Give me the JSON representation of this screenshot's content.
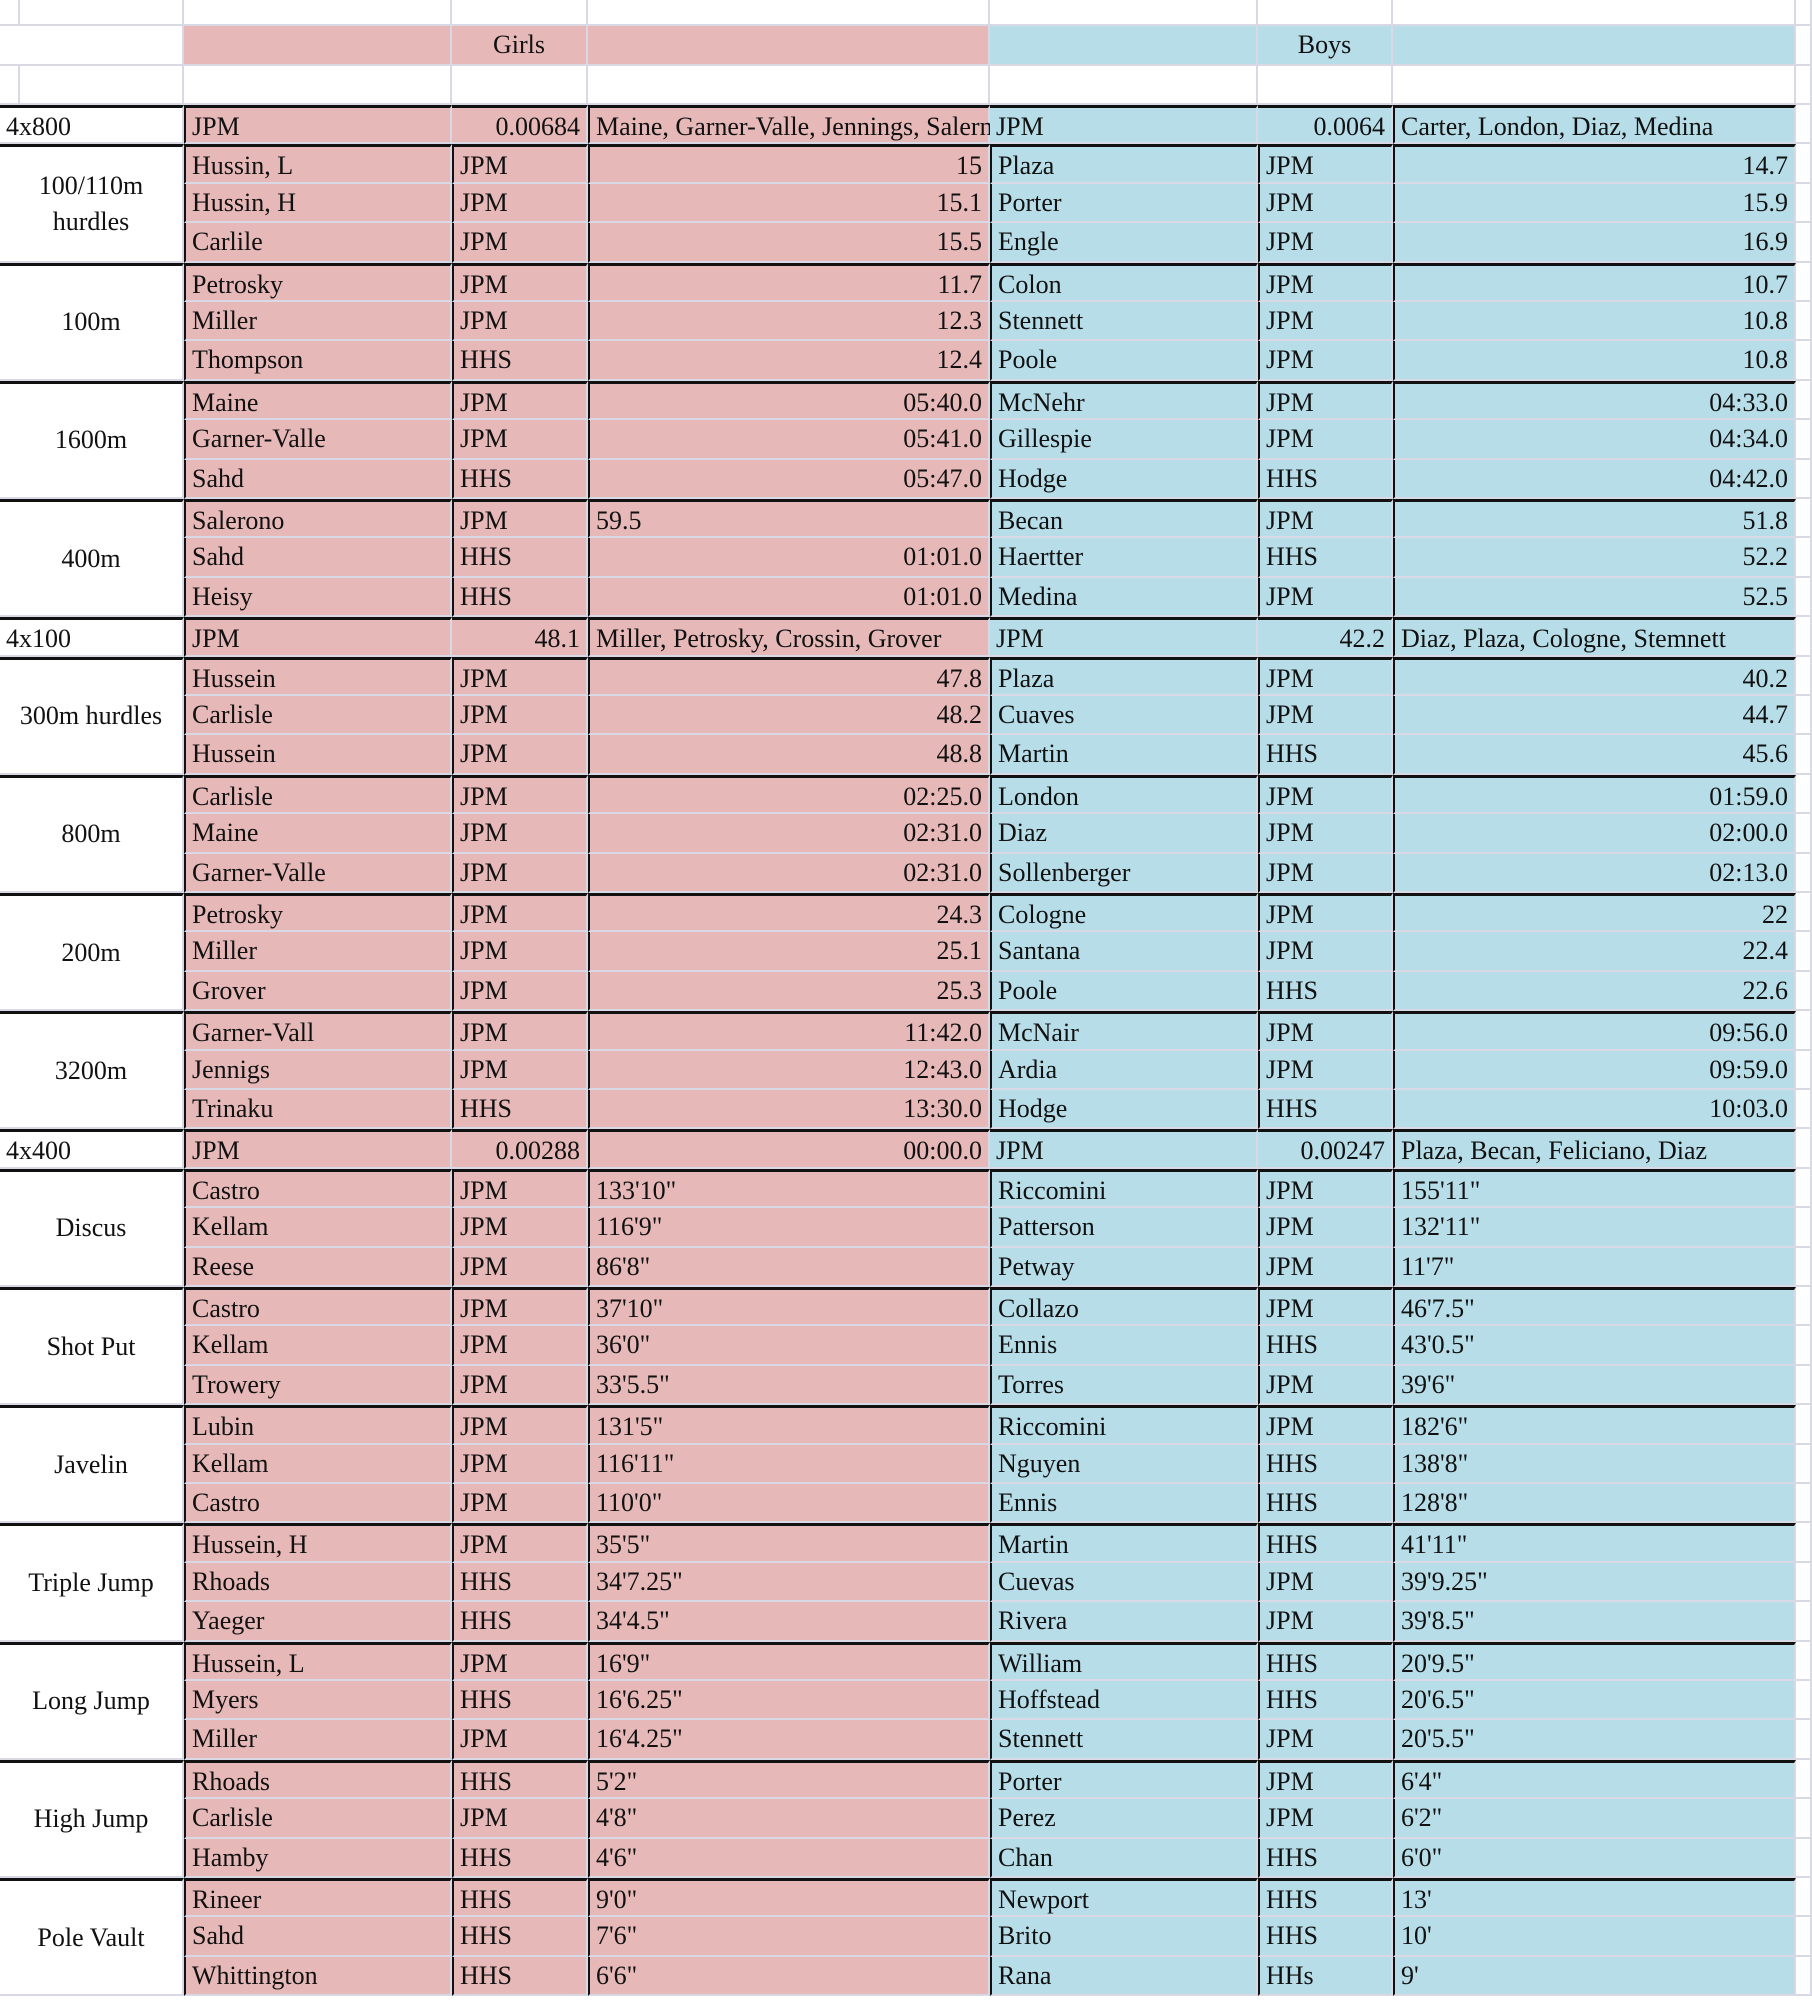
{
  "header": {
    "girls": "Girls",
    "boys": "Boys"
  },
  "colors": {
    "girls_bg": "#e6b8b8",
    "boys_bg": "#b7dde8"
  },
  "events": [
    {
      "name": "4x800",
      "relay": true,
      "girls": {
        "team": "JPM",
        "time": "0.00684",
        "members": "Maine, Garner-Valle, Jennings, Salerno"
      },
      "boys": {
        "team": "JPM",
        "time": "0.0064",
        "members": "Carter, London, Diaz, Medina"
      }
    },
    {
      "name": "100/110m hurdles",
      "rows": [
        {
          "g": [
            "Hussin, L",
            "JPM",
            "15"
          ],
          "b": [
            "Plaza",
            "JPM",
            "14.7"
          ]
        },
        {
          "g": [
            "Hussin, H",
            "JPM",
            "15.1"
          ],
          "b": [
            "Porter",
            "JPM",
            "15.9"
          ]
        },
        {
          "g": [
            "Carlile",
            "JPM",
            "15.5"
          ],
          "b": [
            "Engle",
            "JPM",
            "16.9"
          ]
        }
      ]
    },
    {
      "name": "100m",
      "rows": [
        {
          "g": [
            "Petrosky",
            "JPM",
            "11.7"
          ],
          "b": [
            "Colon",
            "JPM",
            "10.7"
          ]
        },
        {
          "g": [
            "Miller",
            "JPM",
            "12.3"
          ],
          "b": [
            "Stennett",
            "JPM",
            "10.8"
          ]
        },
        {
          "g": [
            "Thompson",
            "HHS",
            "12.4"
          ],
          "b": [
            "Poole",
            "JPM",
            "10.8"
          ]
        }
      ]
    },
    {
      "name": "1600m",
      "rows": [
        {
          "g": [
            "Maine",
            "JPM",
            "05:40.0"
          ],
          "b": [
            "McNehr",
            "JPM",
            "04:33.0"
          ]
        },
        {
          "g": [
            "Garner-Valle",
            "JPM",
            "05:41.0"
          ],
          "b": [
            "Gillespie",
            "JPM",
            "04:34.0"
          ]
        },
        {
          "g": [
            "Sahd",
            "HHS",
            "05:47.0"
          ],
          "b": [
            "Hodge",
            "HHS",
            "04:42.0"
          ]
        }
      ]
    },
    {
      "name": "400m",
      "rows": [
        {
          "g": [
            "Salerono",
            "JPM",
            "59.5"
          ],
          "b": [
            "Becan",
            "JPM",
            "51.8"
          ]
        },
        {
          "g": [
            "Sahd",
            "HHS",
            "01:01.0"
          ],
          "b": [
            "Haertter",
            "HHS",
            "52.2"
          ]
        },
        {
          "g": [
            "Heisy",
            "HHS",
            "01:01.0"
          ],
          "b": [
            "Medina",
            "JPM",
            "52.5"
          ]
        }
      ]
    },
    {
      "name": "4x100",
      "relay": true,
      "girls": {
        "team": "JPM",
        "time": "48.1",
        "members": "Miller, Petrosky, Crossin, Grover"
      },
      "boys": {
        "team": "JPM",
        "time": "42.2",
        "members": "Diaz, Plaza, Cologne, Stemnett"
      }
    },
    {
      "name": "300m hurdles",
      "rows": [
        {
          "g": [
            "Hussein",
            "JPM",
            "47.8"
          ],
          "b": [
            "Plaza",
            "JPM",
            "40.2"
          ]
        },
        {
          "g": [
            "Carlisle",
            "JPM",
            "48.2"
          ],
          "b": [
            "Cuaves",
            "JPM",
            "44.7"
          ]
        },
        {
          "g": [
            "Hussein",
            "JPM",
            "48.8"
          ],
          "b": [
            "Martin",
            "HHS",
            "45.6"
          ]
        }
      ]
    },
    {
      "name": "800m",
      "rows": [
        {
          "g": [
            "Carlisle",
            "JPM",
            "02:25.0"
          ],
          "b": [
            "London",
            "JPM",
            "01:59.0"
          ]
        },
        {
          "g": [
            "Maine",
            "JPM",
            "02:31.0"
          ],
          "b": [
            "Diaz",
            "JPM",
            "02:00.0"
          ]
        },
        {
          "g": [
            "Garner-Valle",
            "JPM",
            "02:31.0"
          ],
          "b": [
            "Sollenberger",
            "JPM",
            "02:13.0"
          ]
        }
      ]
    },
    {
      "name": "200m",
      "rows": [
        {
          "g": [
            "Petrosky",
            "JPM",
            "24.3"
          ],
          "b": [
            "Cologne",
            "JPM",
            "22"
          ]
        },
        {
          "g": [
            "Miller",
            "JPM",
            "25.1"
          ],
          "b": [
            "Santana",
            "JPM",
            "22.4"
          ]
        },
        {
          "g": [
            "Grover",
            "JPM",
            "25.3"
          ],
          "b": [
            "Poole",
            "HHS",
            "22.6"
          ]
        }
      ]
    },
    {
      "name": "3200m",
      "rows": [
        {
          "g": [
            "Garner-Vall",
            "JPM",
            "11:42.0"
          ],
          "b": [
            "McNair",
            "JPM",
            "09:56.0"
          ]
        },
        {
          "g": [
            "Jennigs",
            "JPM",
            "12:43.0"
          ],
          "b": [
            "Ardia",
            "JPM",
            "09:59.0"
          ]
        },
        {
          "g": [
            "Trinaku",
            "HHS",
            "13:30.0"
          ],
          "b": [
            "Hodge",
            "HHS",
            "10:03.0"
          ]
        }
      ]
    },
    {
      "name": "4x400",
      "relay": true,
      "girls": {
        "team": "JPM",
        "time": "0.00288",
        "members": "",
        "extra": "00:00.0"
      },
      "boys": {
        "team": "JPM",
        "time": "0.00247",
        "members": "Plaza, Becan, Feliciano, Diaz"
      }
    },
    {
      "name": "Discus",
      "rows": [
        {
          "g": [
            "Castro",
            "JPM",
            "133'10\""
          ],
          "b": [
            "Riccomini",
            "JPM",
            "155'11\""
          ]
        },
        {
          "g": [
            "Kellam",
            "JPM",
            "116'9\""
          ],
          "b": [
            "Patterson",
            "JPM",
            "132'11\""
          ]
        },
        {
          "g": [
            "Reese",
            "JPM",
            "86'8\""
          ],
          "b": [
            "Petway",
            "JPM",
            "11'7\""
          ]
        }
      ]
    },
    {
      "name": "Shot Put",
      "rows": [
        {
          "g": [
            "Castro",
            "JPM",
            "37'10\""
          ],
          "b": [
            "Collazo",
            "JPM",
            "46'7.5\""
          ]
        },
        {
          "g": [
            "Kellam",
            "JPM",
            "36'0\""
          ],
          "b": [
            "Ennis",
            "HHS",
            "43'0.5\""
          ]
        },
        {
          "g": [
            "Trowery",
            "JPM",
            "33'5.5\""
          ],
          "b": [
            "Torres",
            "JPM",
            "39'6\""
          ]
        }
      ]
    },
    {
      "name": "Javelin",
      "rows": [
        {
          "g": [
            "Lubin",
            "JPM",
            "131'5\""
          ],
          "b": [
            "Riccomini",
            "JPM",
            "182'6\""
          ]
        },
        {
          "g": [
            "Kellam",
            "JPM",
            "116'11\""
          ],
          "b": [
            "Nguyen",
            "HHS",
            "138'8\""
          ]
        },
        {
          "g": [
            "Castro",
            "JPM",
            "110'0\""
          ],
          "b": [
            "Ennis",
            "HHS",
            "128'8\""
          ]
        }
      ]
    },
    {
      "name": "Triple Jump",
      "rows": [
        {
          "g": [
            "Hussein, H",
            "JPM",
            "35'5\""
          ],
          "b": [
            "Martin",
            "HHS",
            "41'11\""
          ]
        },
        {
          "g": [
            "Rhoads",
            "HHS",
            "34'7.25\""
          ],
          "b": [
            "Cuevas",
            "JPM",
            "39'9.25\""
          ]
        },
        {
          "g": [
            "Yaeger",
            "HHS",
            "34'4.5\""
          ],
          "b": [
            "Rivera",
            "JPM",
            "39'8.5\""
          ]
        }
      ]
    },
    {
      "name": "Long Jump",
      "rows": [
        {
          "g": [
            "Hussein, L",
            "JPM",
            "16'9\""
          ],
          "b": [
            "William",
            "HHS",
            "20'9.5\""
          ]
        },
        {
          "g": [
            "Myers",
            "HHS",
            "16'6.25\""
          ],
          "b": [
            "Hoffstead",
            "HHS",
            "20'6.5\""
          ]
        },
        {
          "g": [
            "Miller",
            "JPM",
            "16'4.25\""
          ],
          "b": [
            "Stennett",
            "JPM",
            "20'5.5\""
          ]
        }
      ]
    },
    {
      "name": "High Jump",
      "rows": [
        {
          "g": [
            "Rhoads",
            "HHS",
            "5'2\""
          ],
          "b": [
            "Porter",
            "JPM",
            "6'4\""
          ]
        },
        {
          "g": [
            "Carlisle",
            "JPM",
            "4'8\""
          ],
          "b": [
            "Perez",
            "JPM",
            "6'2\""
          ]
        },
        {
          "g": [
            "Hamby",
            "HHS",
            "4'6\""
          ],
          "b": [
            "Chan",
            "HHS",
            "6'0\""
          ]
        }
      ]
    },
    {
      "name": "Pole Vault",
      "rows": [
        {
          "g": [
            "Rineer",
            "HHS",
            "9'0\""
          ],
          "b": [
            "Newport",
            "HHS",
            "13'"
          ]
        },
        {
          "g": [
            "Sahd",
            "HHS",
            "7'6\""
          ],
          "b": [
            "Brito",
            "HHS",
            "10'"
          ]
        },
        {
          "g": [
            "Whittington",
            "HHS",
            "6'6\""
          ],
          "b": [
            "Rana",
            "HHs",
            "9'"
          ]
        }
      ]
    }
  ]
}
